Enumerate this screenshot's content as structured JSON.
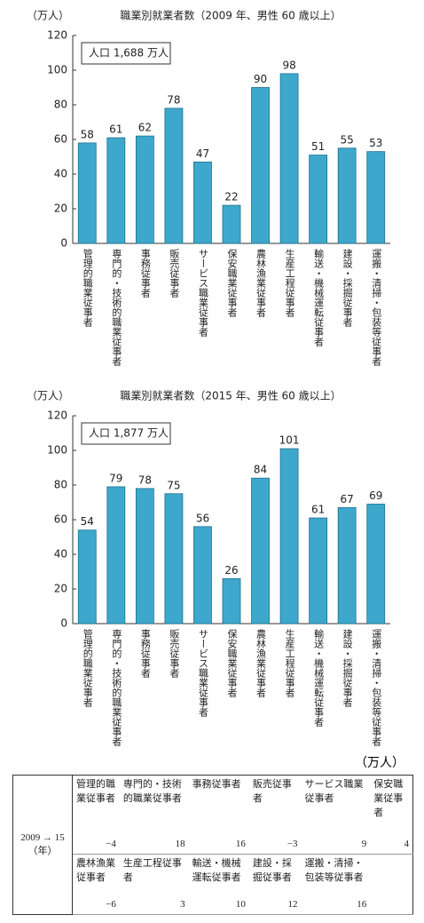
{
  "chart_data": [
    {
      "type": "bar",
      "title": "職業別就業者数（2009 年、男性 60 歳以上）",
      "y_label": "（万人）",
      "annotation": "人口 1,688 万人",
      "categories": [
        "管理的職業従事者",
        "専門的・技術的職業従事者",
        "事務従事者",
        "販売従事者",
        "サービス職業従事者",
        "保安職業従事者",
        "農林漁業従事者",
        "生産工程従事者",
        "輸送・機械運転従事者",
        "建設・採掘従事者",
        "運搬・清掃・包装等従事者"
      ],
      "values": [
        58,
        61,
        62,
        78,
        47,
        22,
        90,
        98,
        51,
        55,
        53
      ],
      "color": "#3ea8cc",
      "ylim": [
        0,
        120
      ],
      "yticks": [
        0,
        20,
        40,
        60,
        80,
        100,
        120
      ]
    },
    {
      "type": "bar",
      "title": "職業別就業者数（2015 年、男性 60 歳以上）",
      "y_label": "（万人）",
      "annotation": "人口 1,877 万人",
      "categories": [
        "管理的職業従事者",
        "専門的・技術的職業従事者",
        "事務従事者",
        "販売従事者",
        "サービス職業従事者",
        "保安職業従事者",
        "農林漁業従事者",
        "生産工程従事者",
        "輸送・機械運転従事者",
        "建設・採掘従事者",
        "運搬・清掃・包装等従事者"
      ],
      "values": [
        54,
        79,
        78,
        75,
        56,
        26,
        84,
        101,
        61,
        67,
        69
      ],
      "color": "#3ea8cc",
      "ylim": [
        0,
        120
      ],
      "yticks": [
        0,
        20,
        40,
        60,
        80,
        100,
        120
      ]
    }
  ],
  "table": {
    "unit": "（万人）",
    "period": "2009 → 15",
    "period_unit": "（年）",
    "headers": [
      [
        "管理的職業従事者",
        "専門的・技術的職業従事者",
        "事務従事者",
        "販売従事者",
        "サービス職業従事者",
        "保安職業従事者"
      ],
      [
        "農林漁業従事者",
        "生産工程従事者",
        "輸送・機械運転従事者",
        "建設・採掘従事者",
        "運搬・清掃・包装等従事者"
      ]
    ],
    "rows": [
      [
        "−4",
        "18",
        "16",
        "−3",
        "9",
        "4"
      ],
      [
        "−6",
        "3",
        "10",
        "12",
        "16"
      ]
    ]
  }
}
